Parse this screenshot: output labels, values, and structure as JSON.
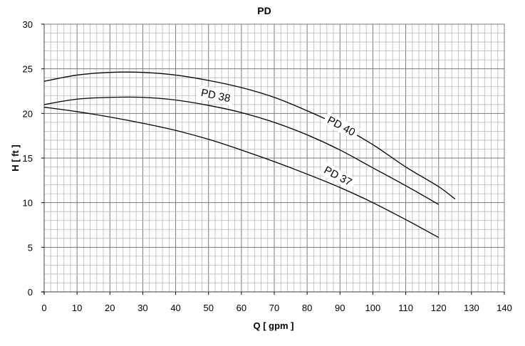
{
  "chart_data": {
    "type": "line",
    "title": "PD",
    "xlabel": "Q [ gpm ]",
    "ylabel": "H [ ft ]",
    "xlim": [
      0,
      140
    ],
    "ylim": [
      0,
      30
    ],
    "x_ticks": [
      "0",
      "10",
      "20",
      "30",
      "40",
      "50",
      "60",
      "70",
      "80",
      "90",
      "100",
      "110",
      "120",
      "130",
      "140"
    ],
    "y_ticks": [
      "0",
      "5",
      "10",
      "15",
      "20",
      "25",
      "30"
    ],
    "grid": true,
    "series": [
      {
        "name": "PD 40",
        "x": [
          0,
          10,
          20,
          30,
          40,
          50,
          60,
          70,
          80,
          90,
          100,
          110,
          120,
          125
        ],
        "y": [
          23.6,
          24.3,
          24.6,
          24.6,
          24.3,
          23.7,
          22.9,
          21.8,
          20.3,
          18.6,
          16.5,
          14.0,
          11.8,
          10.4
        ],
        "label_at": [
          90,
          18.3
        ],
        "label_angle": 28
      },
      {
        "name": "PD 38",
        "x": [
          0,
          10,
          20,
          30,
          40,
          50,
          60,
          70,
          80,
          90,
          100,
          110,
          120
        ],
        "y": [
          21.0,
          21.6,
          21.8,
          21.8,
          21.5,
          20.9,
          20.1,
          19.0,
          17.6,
          15.9,
          13.9,
          11.9,
          9.8
        ],
        "label_at": [
          52,
          21.7
        ],
        "label_angle": 12
      },
      {
        "name": "PD 37",
        "x": [
          0,
          10,
          20,
          30,
          40,
          50,
          60,
          70,
          80,
          90,
          100,
          110,
          120
        ],
        "y": [
          20.7,
          20.2,
          19.6,
          18.9,
          18.1,
          17.1,
          15.9,
          14.6,
          13.2,
          11.7,
          10.0,
          8.1,
          6.1
        ],
        "label_at": [
          89,
          12.7
        ],
        "label_angle": 28
      }
    ]
  }
}
